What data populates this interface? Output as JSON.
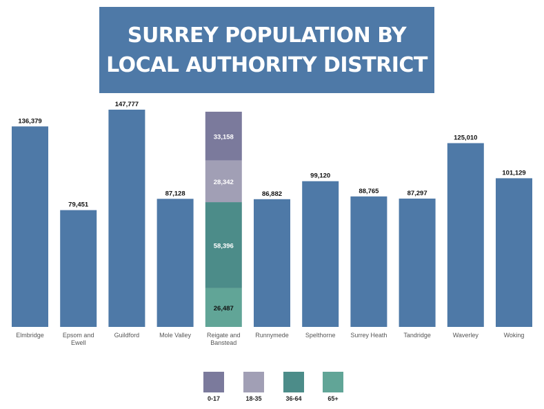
{
  "title": "SURREY POPULATION BY LOCAL AUTHORITY DISTRICT",
  "chart_data": {
    "type": "bar",
    "title": "SURREY POPULATION BY LOCAL AUTHORITY DISTRICT",
    "xlabel": "",
    "ylabel": "",
    "ylim": [
      0,
      150000
    ],
    "grid": false,
    "legend_position": "bottom",
    "bar_color": "#4e79a7",
    "categories": [
      {
        "label": "Elmbridge",
        "lines": [
          "Elmbridge"
        ],
        "value": 136379,
        "value_label": "136,379"
      },
      {
        "label": "Epsom and Ewell",
        "lines": [
          "Epsom and",
          "Ewell"
        ],
        "value": 79451,
        "value_label": "79,451"
      },
      {
        "label": "Guildford",
        "lines": [
          "Guildford"
        ],
        "value": 147777,
        "value_label": "147,777"
      },
      {
        "label": "Mole Valley",
        "lines": [
          "Mole Valley"
        ],
        "value": 87128,
        "value_label": "87,128"
      },
      {
        "label": "Reigate and Banstead",
        "lines": [
          "Reigate and",
          "Banstead"
        ],
        "value": 146383,
        "value_label": "",
        "stack": [
          {
            "group": "65+",
            "value": 26487,
            "value_label": "26,487"
          },
          {
            "group": "36-64",
            "value": 58396,
            "value_label": "58,396"
          },
          {
            "group": "18-35",
            "value": 28342,
            "value_label": "28,342"
          },
          {
            "group": "0-17",
            "value": 33158,
            "value_label": "33,158"
          }
        ]
      },
      {
        "label": "Runnymede",
        "lines": [
          "Runnymede"
        ],
        "value": 86882,
        "value_label": "86,882"
      },
      {
        "label": "Spelthorne",
        "lines": [
          "Spelthorne"
        ],
        "value": 99120,
        "value_label": "99,120"
      },
      {
        "label": "Surrey Heath",
        "lines": [
          "Surrey Heath"
        ],
        "value": 88765,
        "value_label": "88,765"
      },
      {
        "label": "Tandridge",
        "lines": [
          "Tandridge"
        ],
        "value": 87297,
        "value_label": "87,297"
      },
      {
        "label": "Waverley",
        "lines": [
          "Waverley"
        ],
        "value": 125010,
        "value_label": "125,010"
      },
      {
        "label": "Woking",
        "lines": [
          "Woking"
        ],
        "value": 101129,
        "value_label": "101,129"
      }
    ],
    "legend": [
      {
        "label": "0-17",
        "color": "#7b7a9c"
      },
      {
        "label": "18-35",
        "color": "#a19fb5"
      },
      {
        "label": "36-64",
        "color": "#4c8c89"
      },
      {
        "label": "65+",
        "color": "#61a597"
      }
    ]
  }
}
